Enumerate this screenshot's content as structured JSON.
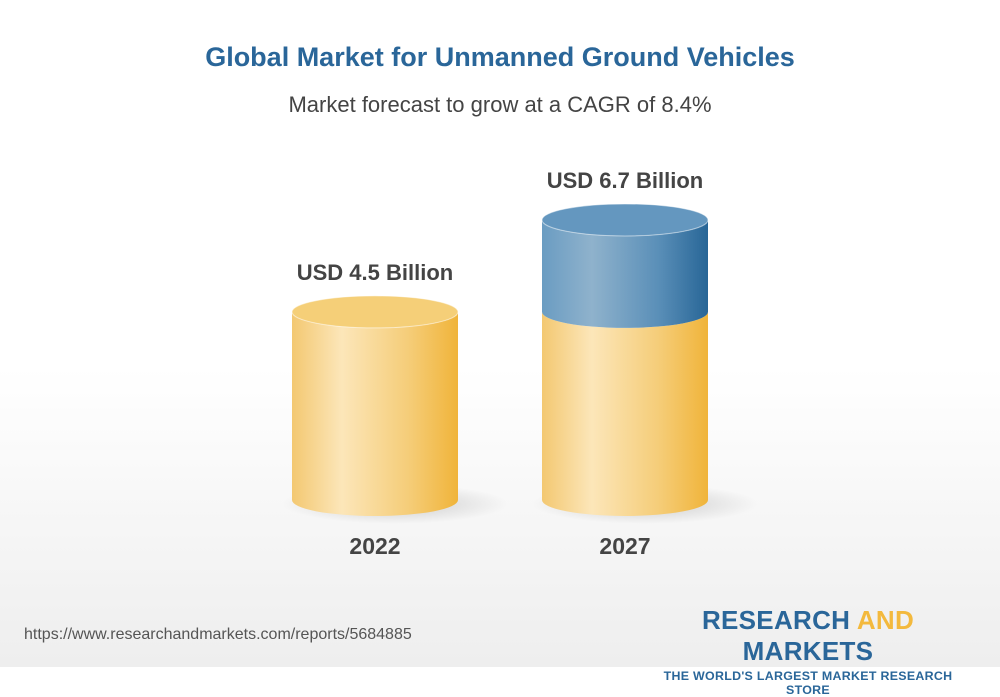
{
  "chart_data": {
    "type": "bar",
    "style": "3d-cylinder",
    "title": "Global Market for Unmanned Ground Vehicles",
    "subtitle": "Market forecast to grow at a CAGR of 8.4%",
    "categories": [
      "2022",
      "2027"
    ],
    "values": [
      4.5,
      6.7
    ],
    "data_labels": [
      "USD 4.5 Billion",
      "USD 6.7 Billion"
    ],
    "unit": "USD Billion",
    "colors": {
      "base": "#f3c35a",
      "growth": "#2a6699"
    }
  },
  "footer": {
    "url": "https://www.researchandmarkets.com/reports/5684885",
    "logo": {
      "part1": "RESEARCH",
      "part2": "AND",
      "part3": "MARKETS",
      "tagline": "THE WORLD'S LARGEST MARKET RESEARCH STORE"
    }
  }
}
